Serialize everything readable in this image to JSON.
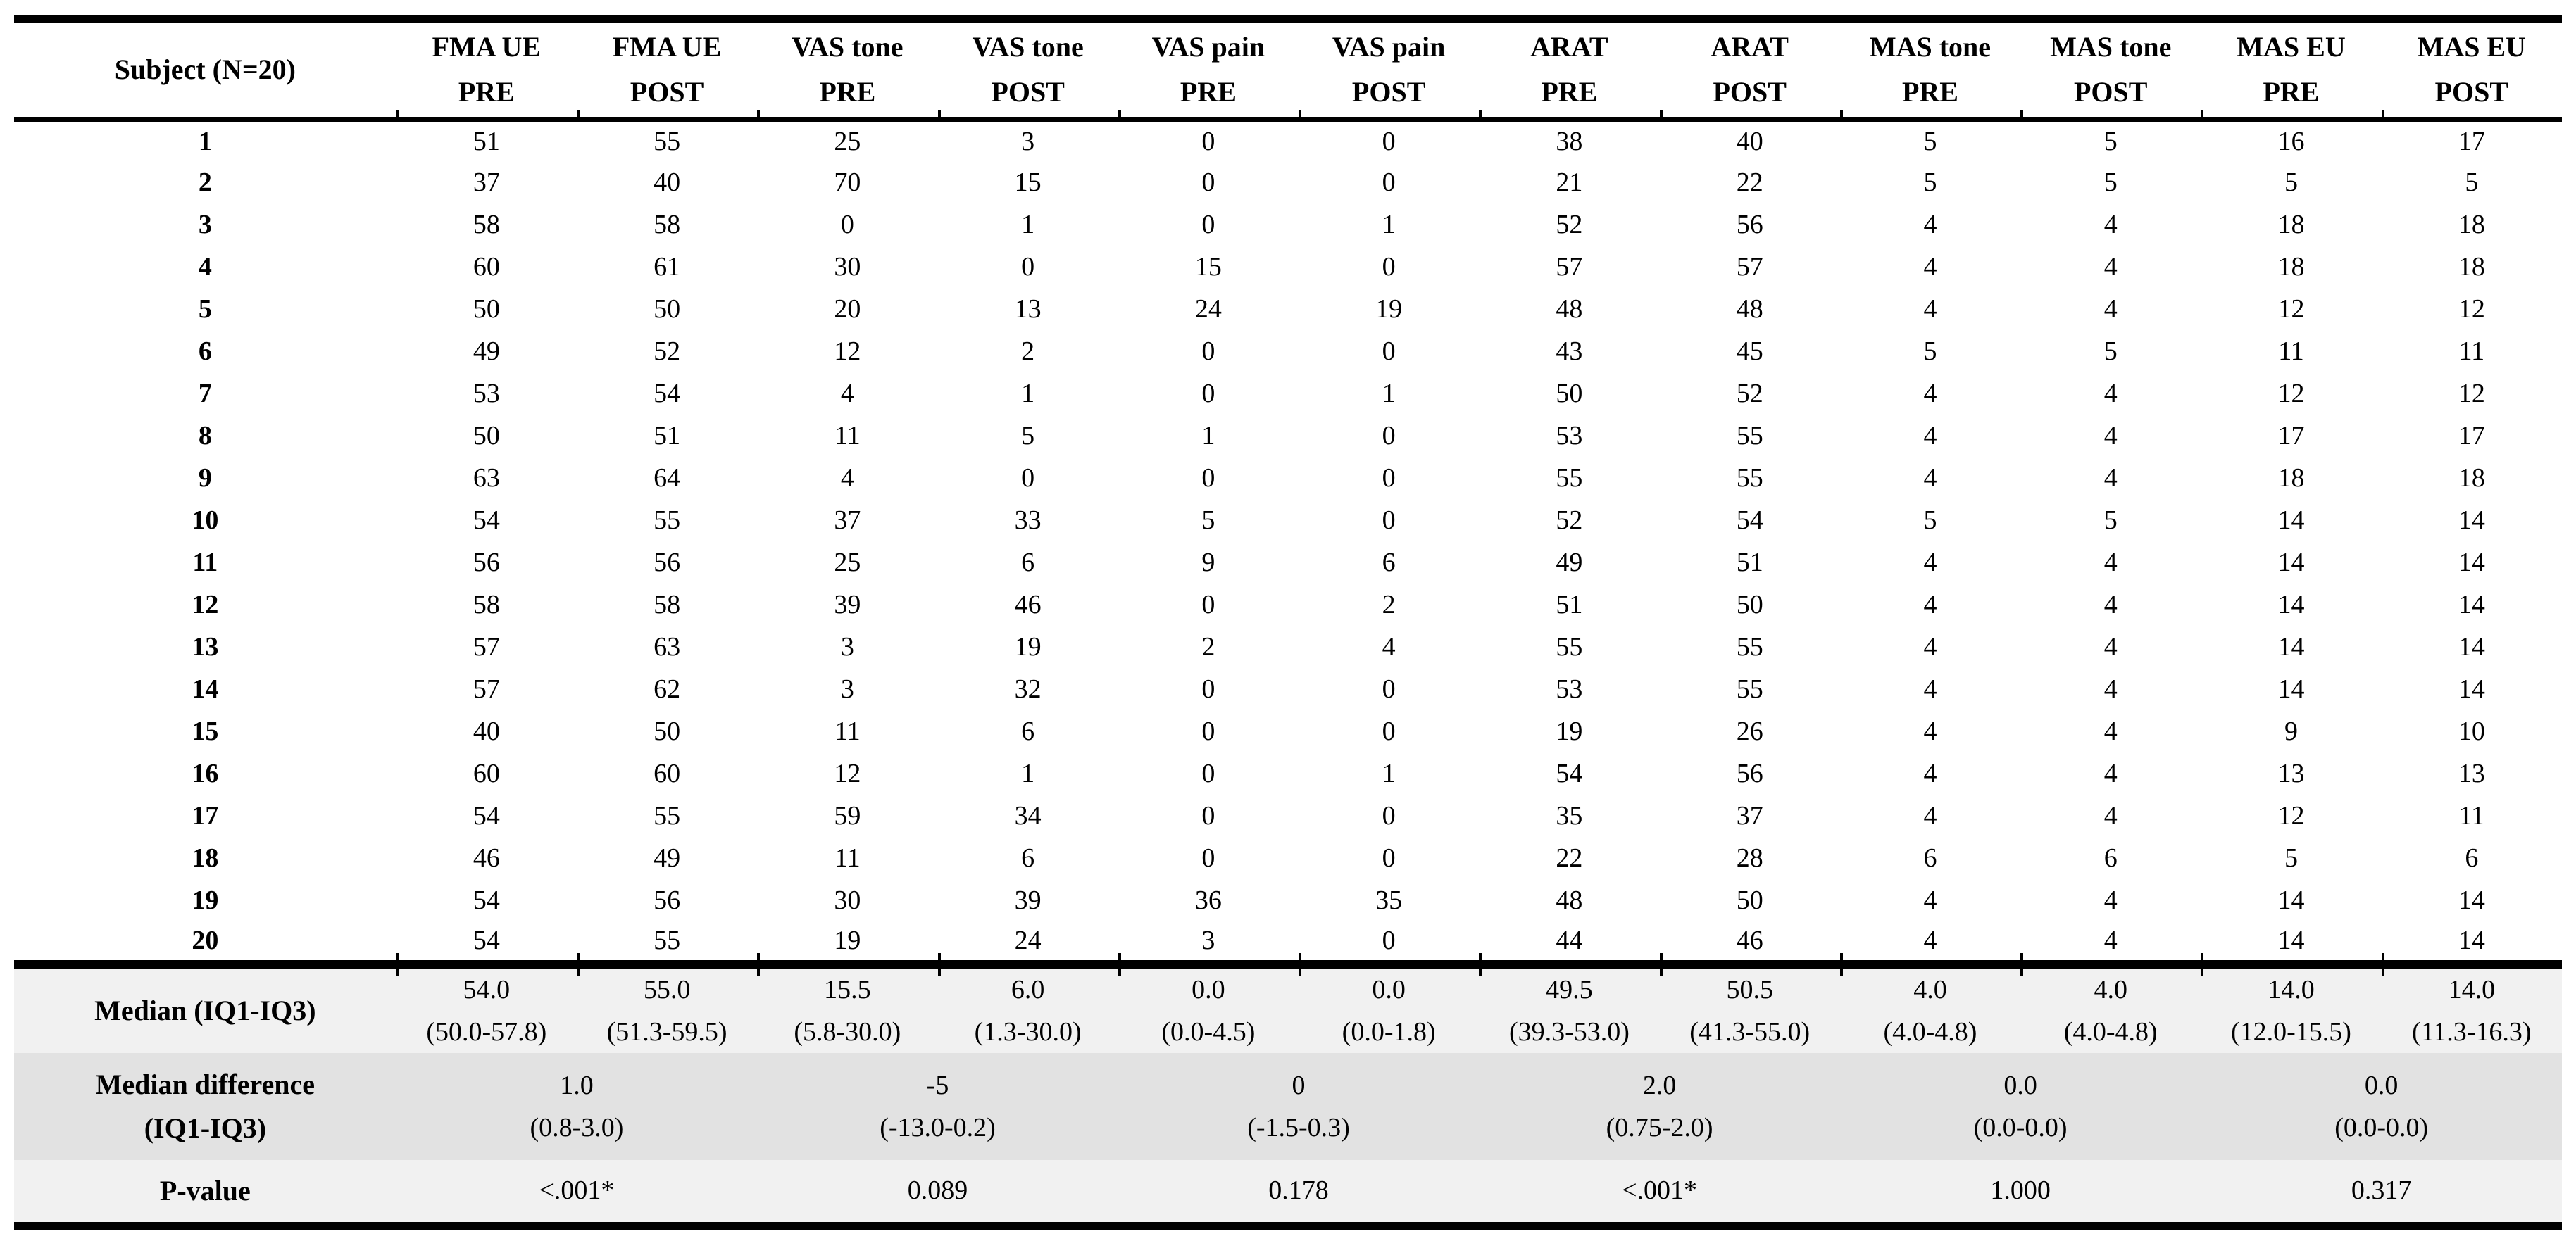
{
  "table": {
    "header": {
      "subject_label": "Subject (N=20)",
      "columns": [
        {
          "line1": "FMA UE",
          "line2": "PRE"
        },
        {
          "line1": "FMA UE",
          "line2": "POST"
        },
        {
          "line1": "VAS tone",
          "line2": "PRE"
        },
        {
          "line1": "VAS tone",
          "line2": "POST"
        },
        {
          "line1": "VAS pain",
          "line2": "PRE"
        },
        {
          "line1": "VAS pain",
          "line2": "POST"
        },
        {
          "line1": "ARAT",
          "line2": "PRE"
        },
        {
          "line1": "ARAT",
          "line2": "POST"
        },
        {
          "line1": "MAS tone",
          "line2": "PRE"
        },
        {
          "line1": "MAS tone",
          "line2": "POST"
        },
        {
          "line1": "MAS EU",
          "line2": "PRE"
        },
        {
          "line1": "MAS EU",
          "line2": "POST"
        }
      ]
    },
    "rows": [
      {
        "subject": "1",
        "values": [
          "51",
          "55",
          "25",
          "3",
          "0",
          "0",
          "38",
          "40",
          "5",
          "5",
          "16",
          "17"
        ]
      },
      {
        "subject": "2",
        "values": [
          "37",
          "40",
          "70",
          "15",
          "0",
          "0",
          "21",
          "22",
          "5",
          "5",
          "5",
          "5"
        ]
      },
      {
        "subject": "3",
        "values": [
          "58",
          "58",
          "0",
          "1",
          "0",
          "1",
          "52",
          "56",
          "4",
          "4",
          "18",
          "18"
        ]
      },
      {
        "subject": "4",
        "values": [
          "60",
          "61",
          "30",
          "0",
          "15",
          "0",
          "57",
          "57",
          "4",
          "4",
          "18",
          "18"
        ]
      },
      {
        "subject": "5",
        "values": [
          "50",
          "50",
          "20",
          "13",
          "24",
          "19",
          "48",
          "48",
          "4",
          "4",
          "12",
          "12"
        ]
      },
      {
        "subject": "6",
        "values": [
          "49",
          "52",
          "12",
          "2",
          "0",
          "0",
          "43",
          "45",
          "5",
          "5",
          "11",
          "11"
        ]
      },
      {
        "subject": "7",
        "values": [
          "53",
          "54",
          "4",
          "1",
          "0",
          "1",
          "50",
          "52",
          "4",
          "4",
          "12",
          "12"
        ]
      },
      {
        "subject": "8",
        "values": [
          "50",
          "51",
          "11",
          "5",
          "1",
          "0",
          "53",
          "55",
          "4",
          "4",
          "17",
          "17"
        ]
      },
      {
        "subject": "9",
        "values": [
          "63",
          "64",
          "4",
          "0",
          "0",
          "0",
          "55",
          "55",
          "4",
          "4",
          "18",
          "18"
        ]
      },
      {
        "subject": "10",
        "values": [
          "54",
          "55",
          "37",
          "33",
          "5",
          "0",
          "52",
          "54",
          "5",
          "5",
          "14",
          "14"
        ]
      },
      {
        "subject": "11",
        "values": [
          "56",
          "56",
          "25",
          "6",
          "9",
          "6",
          "49",
          "51",
          "4",
          "4",
          "14",
          "14"
        ]
      },
      {
        "subject": "12",
        "values": [
          "58",
          "58",
          "39",
          "46",
          "0",
          "2",
          "51",
          "50",
          "4",
          "4",
          "14",
          "14"
        ]
      },
      {
        "subject": "13",
        "values": [
          "57",
          "63",
          "3",
          "19",
          "2",
          "4",
          "55",
          "55",
          "4",
          "4",
          "14",
          "14"
        ]
      },
      {
        "subject": "14",
        "values": [
          "57",
          "62",
          "3",
          "32",
          "0",
          "0",
          "53",
          "55",
          "4",
          "4",
          "14",
          "14"
        ]
      },
      {
        "subject": "15",
        "values": [
          "40",
          "50",
          "11",
          "6",
          "0",
          "0",
          "19",
          "26",
          "4",
          "4",
          "9",
          "10"
        ]
      },
      {
        "subject": "16",
        "values": [
          "60",
          "60",
          "12",
          "1",
          "0",
          "1",
          "54",
          "56",
          "4",
          "4",
          "13",
          "13"
        ]
      },
      {
        "subject": "17",
        "values": [
          "54",
          "55",
          "59",
          "34",
          "0",
          "0",
          "35",
          "37",
          "4",
          "4",
          "12",
          "11"
        ]
      },
      {
        "subject": "18",
        "values": [
          "46",
          "49",
          "11",
          "6",
          "0",
          "0",
          "22",
          "28",
          "6",
          "6",
          "5",
          "6"
        ]
      },
      {
        "subject": "19",
        "values": [
          "54",
          "56",
          "30",
          "39",
          "36",
          "35",
          "48",
          "50",
          "4",
          "4",
          "14",
          "14"
        ]
      },
      {
        "subject": "20",
        "values": [
          "54",
          "55",
          "19",
          "24",
          "3",
          "0",
          "44",
          "46",
          "4",
          "4",
          "14",
          "14"
        ]
      }
    ],
    "median": {
      "label": "Median (IQ1-IQ3)",
      "values": [
        {
          "m": "54.0",
          "iqr": "(50.0-57.8)"
        },
        {
          "m": "55.0",
          "iqr": "(51.3-59.5)"
        },
        {
          "m": "15.5",
          "iqr": "(5.8-30.0)"
        },
        {
          "m": "6.0",
          "iqr": "(1.3-30.0)"
        },
        {
          "m": "0.0",
          "iqr": "(0.0-4.5)"
        },
        {
          "m": "0.0",
          "iqr": "(0.0-1.8)"
        },
        {
          "m": "49.5",
          "iqr": "(39.3-53.0)"
        },
        {
          "m": "50.5",
          "iqr": "(41.3-55.0)"
        },
        {
          "m": "4.0",
          "iqr": "(4.0-4.8)"
        },
        {
          "m": "4.0",
          "iqr": "(4.0-4.8)"
        },
        {
          "m": "14.0",
          "iqr": "(12.0-15.5)"
        },
        {
          "m": "14.0",
          "iqr": "(11.3-16.3)"
        }
      ]
    },
    "median_difference": {
      "label_line1": "Median difference",
      "label_line2": "(IQ1-IQ3)",
      "values": [
        {
          "m": "1.0",
          "iqr": "(0.8-3.0)"
        },
        {
          "m": "-5",
          "iqr": "(-13.0-0.2)"
        },
        {
          "m": "0",
          "iqr": "(-1.5-0.3)"
        },
        {
          "m": "2.0",
          "iqr": "(0.75-2.0)"
        },
        {
          "m": "0.0",
          "iqr": "(0.0-0.0)"
        },
        {
          "m": "0.0",
          "iqr": "(0.0-0.0)"
        }
      ]
    },
    "p_value": {
      "label": "P-value",
      "values": [
        {
          "v": "<.001*"
        },
        {
          "v": "0.089"
        },
        {
          "v": "0.178"
        },
        {
          "v": "<.001*"
        },
        {
          "v": "1.000"
        },
        {
          "v": "0.317"
        }
      ]
    },
    "colors": {
      "summary_row_light": "#f1f1f1",
      "summary_row_dark": "#e2e2e2",
      "rule_color": "#000000",
      "text_color": "#000000"
    }
  }
}
